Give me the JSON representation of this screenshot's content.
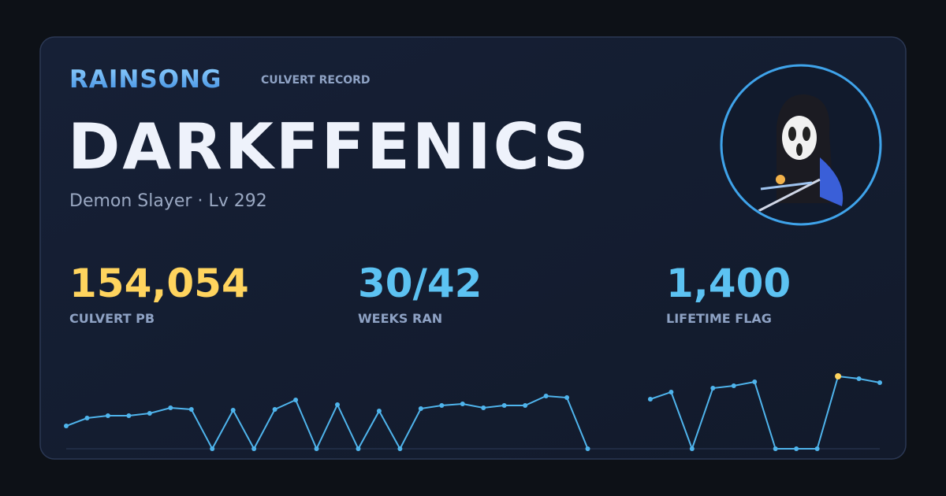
{
  "header": {
    "brand": "RAINSONG",
    "subtitle": "CULVERT RECORD"
  },
  "player": {
    "name": "DARKFFENICS",
    "info": "Demon Slayer · Lv 292"
  },
  "stats": [
    {
      "value": "154,054",
      "label": "CULVERT PB",
      "color": "#ffd45e"
    },
    {
      "value": "30/42",
      "label": "WEEKS RAN",
      "color": "#5cc2f2"
    },
    {
      "value": "1,400",
      "label": "LIFETIME FLAG",
      "color": "#5cc2f2"
    }
  ],
  "chart_data": {
    "type": "line",
    "color": "#4fb4ec",
    "highlight_color": "#ffd45e",
    "ylim": [
      0,
      154054
    ],
    "values": [
      48500,
      65300,
      70300,
      70300,
      75400,
      87100,
      83700,
      0,
      82000,
      0,
      83700,
      103800,
      0,
      93800,
      0,
      80400,
      0,
      85400,
      92100,
      95400,
      87100,
      92100,
      92100,
      112200,
      108800,
      0,
      null,
      null,
      105500,
      120600,
      0,
      128900,
      134000,
      142300,
      0,
      0,
      0,
      154054,
      149000,
      140700
    ]
  }
}
